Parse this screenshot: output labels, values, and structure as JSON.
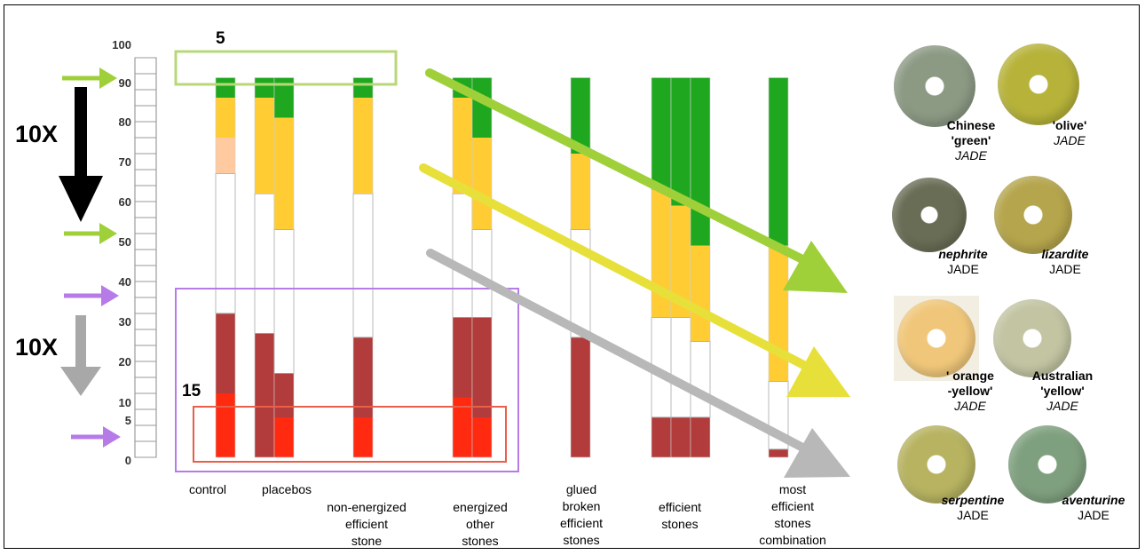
{
  "chart_data": {
    "type": "bar",
    "y_ticks": [
      "0",
      "5",
      "10",
      "20",
      "30",
      "40",
      "50",
      "60",
      "70",
      "80",
      "90",
      "100"
    ],
    "groups": [
      {
        "label": [
          "control"
        ],
        "bars": [
          {
            "segments": [
              {
                "from": 0,
                "to": 16,
                "color": "#ff2a10"
              },
              {
                "from": 16,
                "to": 36,
                "color": "#b23b3b"
              },
              {
                "from": 36,
                "to": 71,
                "color": "#ffffff"
              },
              {
                "from": 71,
                "to": 80,
                "color": "#ffcaa0"
              },
              {
                "from": 80,
                "to": 90,
                "color": "#ffcc33"
              },
              {
                "from": 90,
                "to": 95,
                "color": "#1fa81f"
              }
            ]
          }
        ]
      },
      {
        "label": [
          "placebos"
        ],
        "bars": [
          {
            "segments": [
              {
                "from": 0,
                "to": 31,
                "color": "#b23b3b"
              },
              {
                "from": 31,
                "to": 66,
                "color": "#ffffff"
              },
              {
                "from": 66,
                "to": 90,
                "color": "#ffcc33"
              },
              {
                "from": 90,
                "to": 95,
                "color": "#1fa81f"
              }
            ]
          },
          {
            "segments": [
              {
                "from": 0,
                "to": 10,
                "color": "#ff2a10"
              },
              {
                "from": 10,
                "to": 21,
                "color": "#b23b3b"
              },
              {
                "from": 21,
                "to": 57,
                "color": "#ffffff"
              },
              {
                "from": 57,
                "to": 85,
                "color": "#ffcc33"
              },
              {
                "from": 85,
                "to": 95,
                "color": "#1fa81f"
              }
            ]
          }
        ]
      },
      {
        "label": [
          "non-energized",
          "efficient",
          "stone"
        ],
        "bars": [
          {
            "segments": [
              {
                "from": 0,
                "to": 10,
                "color": "#ff2a10"
              },
              {
                "from": 10,
                "to": 30,
                "color": "#b23b3b"
              },
              {
                "from": 30,
                "to": 66,
                "color": "#ffffff"
              },
              {
                "from": 66,
                "to": 90,
                "color": "#ffcc33"
              },
              {
                "from": 90,
                "to": 95,
                "color": "#1fa81f"
              }
            ]
          }
        ]
      },
      {
        "label": [
          "energized",
          "other",
          "stones"
        ],
        "bars": [
          {
            "segments": [
              {
                "from": 0,
                "to": 15,
                "color": "#ff2a10"
              },
              {
                "from": 15,
                "to": 35,
                "color": "#b23b3b"
              },
              {
                "from": 35,
                "to": 66,
                "color": "#ffffff"
              },
              {
                "from": 66,
                "to": 90,
                "color": "#ffcc33"
              },
              {
                "from": 90,
                "to": 95,
                "color": "#1fa81f"
              }
            ]
          },
          {
            "segments": [
              {
                "from": 0,
                "to": 10,
                "color": "#ff2a10"
              },
              {
                "from": 10,
                "to": 35,
                "color": "#b23b3b"
              },
              {
                "from": 35,
                "to": 57,
                "color": "#ffffff"
              },
              {
                "from": 57,
                "to": 80,
                "color": "#ffcc33"
              },
              {
                "from": 80,
                "to": 95,
                "color": "#1fa81f"
              }
            ]
          }
        ]
      },
      {
        "label": [
          "glued",
          "broken",
          "efficient",
          "stones"
        ],
        "bars": [
          {
            "segments": [
              {
                "from": 0,
                "to": 30,
                "color": "#b23b3b"
              },
              {
                "from": 30,
                "to": 57,
                "color": "#ffffff"
              },
              {
                "from": 57,
                "to": 76,
                "color": "#ffcc33"
              },
              {
                "from": 76,
                "to": 95,
                "color": "#1fa81f"
              }
            ]
          }
        ]
      },
      {
        "label": [
          "efficient",
          "stones"
        ],
        "bars": [
          {
            "segments": [
              {
                "from": 0,
                "to": 10,
                "color": "#b23b3b"
              },
              {
                "from": 10,
                "to": 35,
                "color": "#ffffff"
              },
              {
                "from": 35,
                "to": 67,
                "color": "#ffcc33"
              },
              {
                "from": 67,
                "to": 95,
                "color": "#1fa81f"
              }
            ]
          },
          {
            "segments": [
              {
                "from": 0,
                "to": 10,
                "color": "#b23b3b"
              },
              {
                "from": 10,
                "to": 35,
                "color": "#ffffff"
              },
              {
                "from": 35,
                "to": 63,
                "color": "#ffcc33"
              },
              {
                "from": 63,
                "to": 95,
                "color": "#1fa81f"
              }
            ]
          },
          {
            "segments": [
              {
                "from": 0,
                "to": 10,
                "color": "#b23b3b"
              },
              {
                "from": 10,
                "to": 29,
                "color": "#ffffff"
              },
              {
                "from": 29,
                "to": 53,
                "color": "#ffcc33"
              },
              {
                "from": 53,
                "to": 95,
                "color": "#1fa81f"
              }
            ]
          }
        ]
      },
      {
        "label": [
          "most",
          "efficient",
          "stones",
          "combination"
        ],
        "bars": [
          {
            "segments": [
              {
                "from": 0,
                "to": 2,
                "color": "#b23b3b"
              },
              {
                "from": 2,
                "to": 19,
                "color": "#ffffff"
              },
              {
                "from": 19,
                "to": 53,
                "color": "#ffcc33"
              },
              {
                "from": 53,
                "to": 95,
                "color": "#1fa81f"
              }
            ]
          }
        ]
      }
    ],
    "annotations": [
      {
        "text": "5",
        "near": "top band"
      },
      {
        "text": "15",
        "near": "bottom band"
      },
      {
        "text": "10X",
        "near": "top-left arrow"
      },
      {
        "text": "10X",
        "near": "bottom-left arrow"
      }
    ],
    "ylim": [
      0,
      100
    ],
    "legend": "none",
    "grid": false
  },
  "labels": {
    "top_band_value": "5",
    "bottom_band_value": "15",
    "factor_top": "10X",
    "factor_bottom": "10X"
  },
  "colors": {
    "dark_green": "#1fa81f",
    "yellow": "#ffcc33",
    "dark_red": "#b23b3b",
    "bright_red": "#ff2a10",
    "peach": "#ffcaa0",
    "light_green_arrow": "#9fd03a",
    "yellow_arrow": "#e8e03a",
    "gray_arrow": "#b8b8b8",
    "purple": "#b77be8",
    "band_red": "#e8604a",
    "band_green": "#b8d878"
  },
  "stones": [
    {
      "line1": "Chinese",
      "line2": "'green'",
      "line3": "JADE",
      "color": "#8c9a84",
      "bg": "#ffffff"
    },
    {
      "line1": "'olive'",
      "line2": "JADE",
      "line3": "",
      "color": "#b7b33a",
      "bg": "#ffffff"
    },
    {
      "line1": "nephrite",
      "line2": "JADE",
      "line3": "",
      "color": "#6a6d55",
      "bg": "#ffffff"
    },
    {
      "line1": "lizardite",
      "line2": "JADE",
      "line3": "",
      "color": "#b5a54c",
      "bg": "#ffffff"
    },
    {
      "line1": "' orange",
      "line2": "-yellow'",
      "line3": "JADE",
      "color": "#f0c77a",
      "bg": "#f2eee2"
    },
    {
      "line1": "Australian",
      "line2": "'yellow'",
      "line3": "JADE",
      "color": "#c2c4a2",
      "bg": "#ffffff"
    },
    {
      "line1": "serpentine",
      "line2": "JADE",
      "line3": "",
      "color": "#b7b361",
      "bg": "#ffffff"
    },
    {
      "line1": "aventurine",
      "line2": "JADE",
      "line3": "",
      "color": "#7fa07f",
      "bg": "#ffffff"
    }
  ]
}
